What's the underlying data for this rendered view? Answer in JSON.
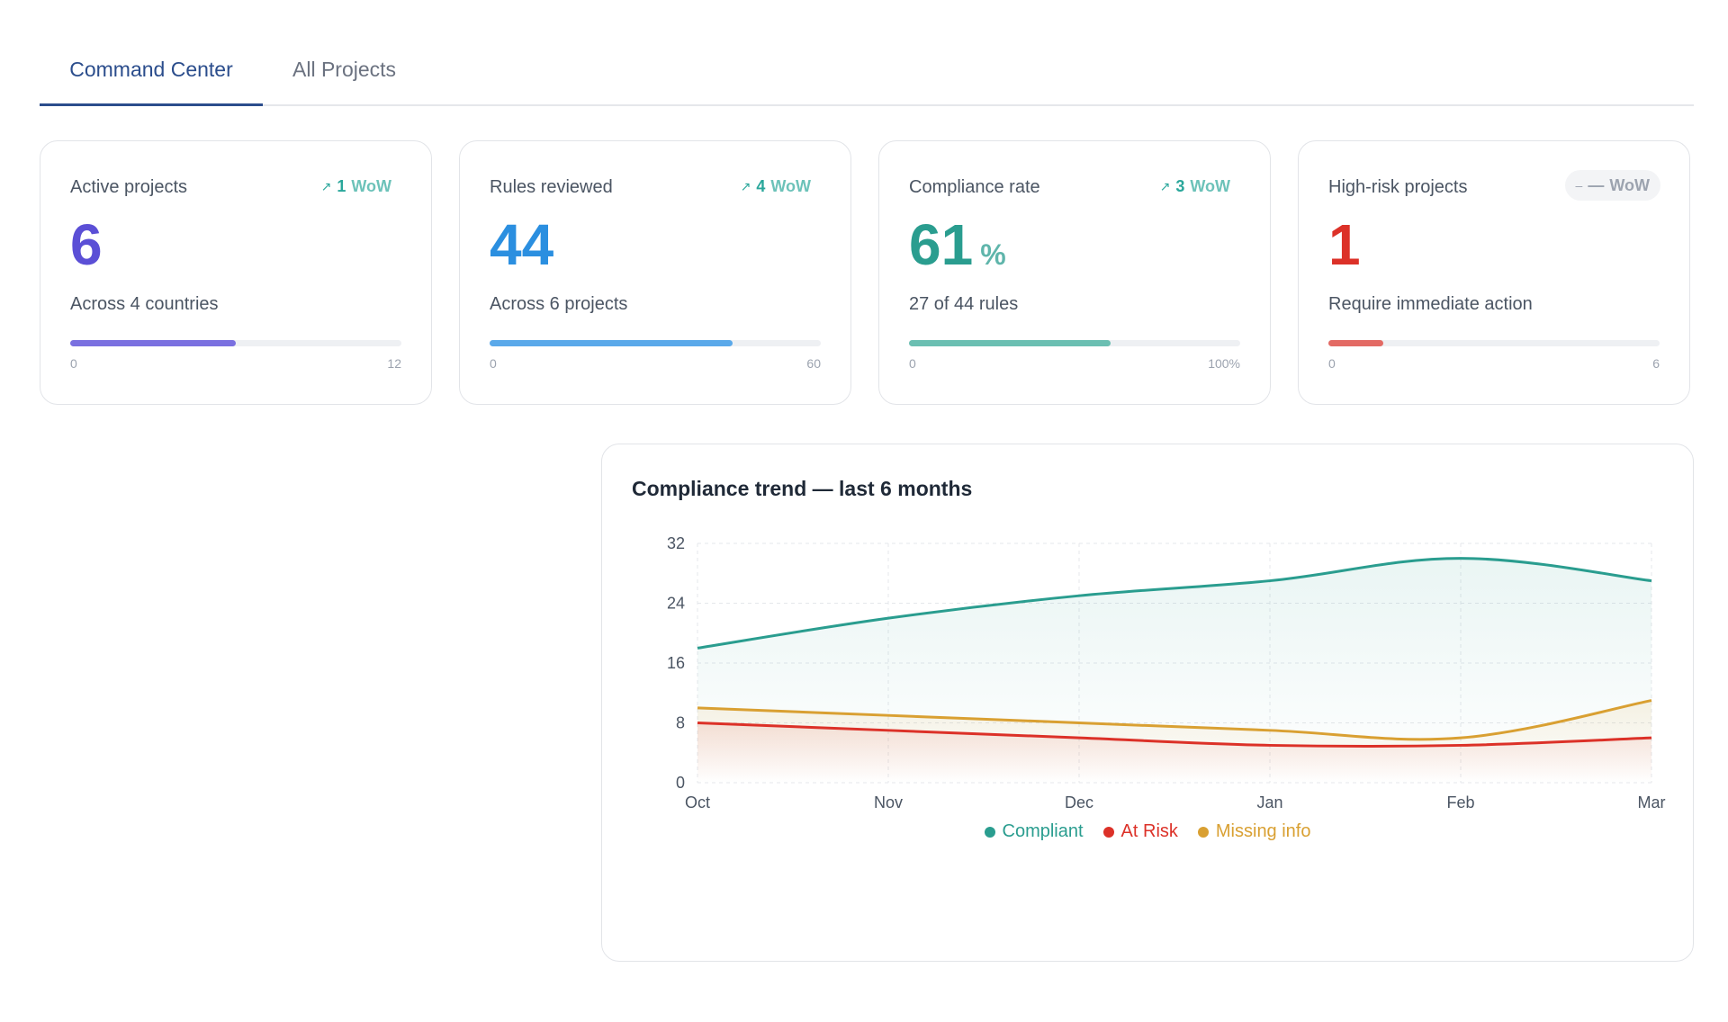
{
  "tabs": [
    {
      "label": "Command Center",
      "active": true
    },
    {
      "label": "All Projects",
      "active": false
    }
  ],
  "cards": [
    {
      "label": "Active projects",
      "trend_value": "1",
      "trend_unit": "WoW",
      "trend_dir": "up",
      "value": "6",
      "unit": "",
      "subtitle": "Across 4 countries",
      "progress": 0.5,
      "min": "0",
      "max": "12",
      "color": "#5b4fd6",
      "bar_color": "#7a70e0"
    },
    {
      "label": "Rules reviewed",
      "trend_value": "4",
      "trend_unit": "WoW",
      "trend_dir": "up",
      "value": "44",
      "unit": "",
      "subtitle": "Across 6 projects",
      "progress": 0.733,
      "min": "0",
      "max": "60",
      "color": "#2b8fe0",
      "bar_color": "#5aa9ea"
    },
    {
      "label": "Compliance rate",
      "trend_value": "3",
      "trend_unit": "WoW",
      "trend_dir": "up",
      "value": "61",
      "unit": "%",
      "subtitle": "27 of 44 rules",
      "progress": 0.61,
      "min": "0",
      "max": "100%",
      "color": "#2a9d8f",
      "bar_color": "#6bbfb2"
    },
    {
      "label": "High-risk projects",
      "trend_value": "—",
      "trend_unit": "WoW",
      "trend_dir": "flat",
      "value": "1",
      "unit": "",
      "subtitle": "Require immediate action",
      "progress": 0.167,
      "min": "0",
      "max": "6",
      "color": "#dc3128",
      "bar_color": "#e36a64"
    }
  ],
  "trend_up_icon": "↗",
  "trend_flat_icon": "–",
  "chart": {
    "title": "Compliance trend — last 6 months"
  },
  "chart_data": {
    "type": "area",
    "title": "Compliance trend — last 6 months",
    "categories": [
      "Oct",
      "Nov",
      "Dec",
      "Jan",
      "Feb",
      "Mar"
    ],
    "ylim": [
      0,
      32
    ],
    "yticks": [
      0,
      8,
      16,
      24,
      32
    ],
    "grid": true,
    "legend_position": "bottom",
    "series": [
      {
        "name": "Compliant",
        "color": "#2a9d8f",
        "values": [
          18,
          22,
          25,
          27,
          30,
          27
        ]
      },
      {
        "name": "At Risk",
        "color": "#dc3128",
        "values": [
          8,
          7,
          6,
          5,
          5,
          6
        ]
      },
      {
        "name": "Missing info",
        "color": "#d9a032",
        "values": [
          10,
          9,
          8,
          7,
          6,
          11
        ]
      }
    ]
  }
}
